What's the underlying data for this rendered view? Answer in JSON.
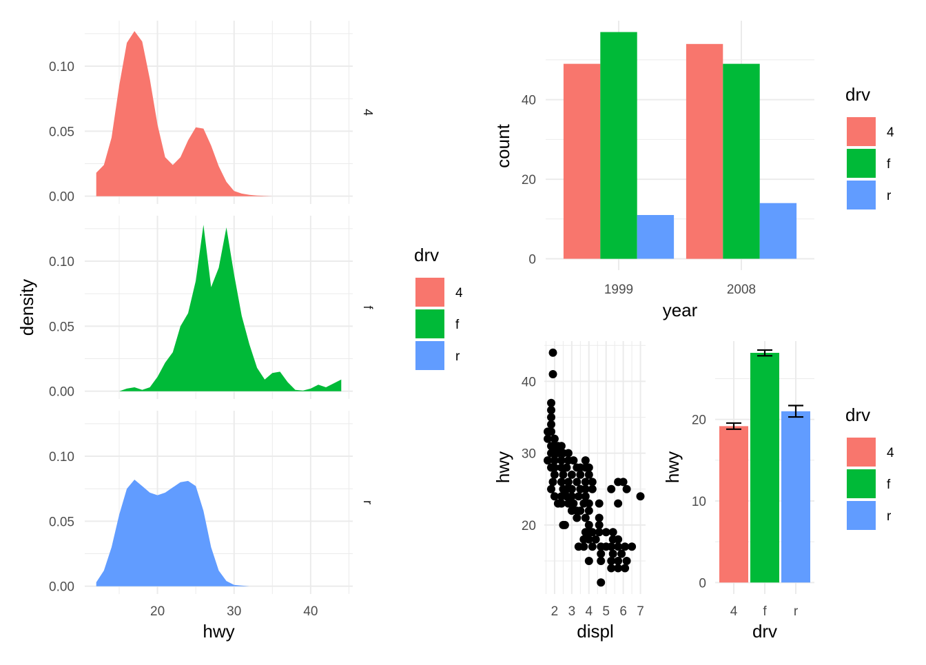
{
  "colors": {
    "4": "#F8766D",
    "f": "#00BA38",
    "r": "#619CFF"
  },
  "chart_data": [
    {
      "type": "area",
      "name": "density-facets",
      "xlabel": "hwy",
      "ylabel": "density",
      "xlim": [
        10.5,
        45.5
      ],
      "ylim": [
        -0.006,
        0.135
      ],
      "xticks": [
        20,
        30,
        40
      ],
      "xtick_labels": [
        "20",
        "30",
        "40"
      ],
      "yticks": [
        0,
        0.05,
        0.1
      ],
      "ytick_labels": [
        "0.00",
        "0.05",
        "0.10"
      ],
      "grid": true,
      "facets": [
        {
          "strip": "4",
          "key": "4",
          "x": [
            12,
            13,
            14,
            15,
            16,
            17,
            18,
            19,
            20,
            21,
            22,
            23,
            24,
            25,
            26,
            27,
            28,
            29,
            30,
            31,
            32,
            33,
            34,
            35
          ],
          "y": [
            0.018,
            0.024,
            0.045,
            0.085,
            0.118,
            0.127,
            0.119,
            0.09,
            0.055,
            0.03,
            0.024,
            0.03,
            0.043,
            0.053,
            0.052,
            0.039,
            0.023,
            0.011,
            0.004,
            0.002,
            0.001,
            0.0005,
            0.0002,
            0
          ]
        },
        {
          "strip": "f",
          "key": "f",
          "x": [
            15,
            16,
            17,
            18,
            19,
            20,
            21,
            22,
            23,
            24,
            25,
            26,
            27,
            28,
            29,
            30,
            31,
            32,
            33,
            34,
            35,
            36,
            37,
            38,
            39,
            40,
            41,
            42,
            43,
            44
          ],
          "y": [
            0,
            0.002,
            0.003,
            0.001,
            0.003,
            0.011,
            0.022,
            0.03,
            0.05,
            0.06,
            0.085,
            0.128,
            0.08,
            0.095,
            0.126,
            0.09,
            0.058,
            0.036,
            0.018,
            0.009,
            0.014,
            0.015,
            0.007,
            0.001,
            0.0005,
            0.002,
            0.005,
            0.003,
            0.006,
            0.009
          ]
        },
        {
          "strip": "r",
          "key": "r",
          "x": [
            12,
            13,
            14,
            15,
            16,
            17,
            18,
            19,
            20,
            21,
            22,
            23,
            24,
            25,
            26,
            27,
            28,
            29,
            30,
            31,
            32
          ],
          "y": [
            0.003,
            0.012,
            0.03,
            0.055,
            0.075,
            0.082,
            0.077,
            0.072,
            0.07,
            0.072,
            0.076,
            0.08,
            0.081,
            0.077,
            0.058,
            0.03,
            0.012,
            0.004,
            0.001,
            0.0005,
            0
          ]
        }
      ]
    },
    {
      "type": "bar",
      "name": "count-by-year",
      "categories": [
        "1999",
        "2008"
      ],
      "series": [
        {
          "name": "4",
          "values": [
            49,
            54
          ]
        },
        {
          "name": "f",
          "values": [
            57,
            49
          ]
        },
        {
          "name": "r",
          "values": [
            11,
            14
          ]
        }
      ],
      "xlabel": "year",
      "ylabel": "count",
      "ylim": [
        -2.85,
        59.85
      ],
      "yticks": [
        0,
        20,
        40
      ],
      "ytick_labels": [
        "0",
        "20",
        "40"
      ],
      "grid": true,
      "legend": "right"
    },
    {
      "type": "scatter",
      "name": "hwy-vs-displ",
      "xlabel": "displ",
      "ylabel": "hwy",
      "xlim": [
        1.4,
        7.3
      ],
      "ylim": [
        10.4,
        45.6
      ],
      "xticks": [
        2,
        3,
        4,
        5,
        6,
        7
      ],
      "xtick_labels": [
        "2",
        "3",
        "4",
        "5",
        "6",
        "7"
      ],
      "yticks": [
        20,
        30,
        40
      ],
      "ytick_labels": [
        "20",
        "30",
        "40"
      ],
      "grid": true,
      "points": [
        [
          1.9,
          44
        ],
        [
          1.9,
          41
        ],
        [
          1.8,
          37
        ],
        [
          1.8,
          36
        ],
        [
          1.8,
          35
        ],
        [
          1.8,
          34
        ],
        [
          1.6,
          33
        ],
        [
          1.8,
          33
        ],
        [
          1.6,
          32
        ],
        [
          2.0,
          32
        ],
        [
          1.8,
          31
        ],
        [
          2.0,
          31
        ],
        [
          2.2,
          31
        ],
        [
          2.4,
          31
        ],
        [
          2.0,
          30
        ],
        [
          1.8,
          30
        ],
        [
          2.2,
          30
        ],
        [
          2.5,
          30
        ],
        [
          2.8,
          30
        ],
        [
          1.6,
          29
        ],
        [
          2.0,
          29
        ],
        [
          2.4,
          29
        ],
        [
          2.8,
          29
        ],
        [
          3.1,
          29
        ],
        [
          3.8,
          29
        ],
        [
          1.8,
          28
        ],
        [
          2.0,
          28
        ],
        [
          2.4,
          28
        ],
        [
          2.7,
          28
        ],
        [
          3.3,
          28
        ],
        [
          3.5,
          28
        ],
        [
          3.8,
          28
        ],
        [
          4.0,
          28
        ],
        [
          2.0,
          27
        ],
        [
          2.5,
          27
        ],
        [
          3.0,
          27
        ],
        [
          3.5,
          27
        ],
        [
          4.0,
          27
        ],
        [
          1.9,
          26
        ],
        [
          2.4,
          26
        ],
        [
          2.8,
          26
        ],
        [
          3.3,
          26
        ],
        [
          3.8,
          26
        ],
        [
          4.2,
          26
        ],
        [
          5.7,
          26
        ],
        [
          6.0,
          26
        ],
        [
          1.8,
          25
        ],
        [
          2.5,
          25
        ],
        [
          2.7,
          25
        ],
        [
          3.0,
          25
        ],
        [
          3.5,
          25
        ],
        [
          3.8,
          25
        ],
        [
          4.2,
          25
        ],
        [
          5.3,
          25
        ],
        [
          6.2,
          25
        ],
        [
          2.0,
          24
        ],
        [
          2.4,
          24
        ],
        [
          2.7,
          24
        ],
        [
          3.0,
          24
        ],
        [
          3.4,
          24
        ],
        [
          3.8,
          24
        ],
        [
          7.0,
          24
        ],
        [
          2.2,
          23
        ],
        [
          2.4,
          23
        ],
        [
          2.8,
          23
        ],
        [
          3.1,
          23
        ],
        [
          3.7,
          23
        ],
        [
          4.0,
          23
        ],
        [
          4.6,
          23
        ],
        [
          5.7,
          23
        ],
        [
          3.0,
          22
        ],
        [
          3.3,
          22
        ],
        [
          3.5,
          22
        ],
        [
          4.0,
          22
        ],
        [
          3.3,
          21
        ],
        [
          3.8,
          21
        ],
        [
          4.6,
          21
        ],
        [
          2.5,
          20
        ],
        [
          2.6,
          20
        ],
        [
          4.0,
          20
        ],
        [
          4.6,
          20
        ],
        [
          3.8,
          19
        ],
        [
          4.0,
          19
        ],
        [
          4.2,
          19
        ],
        [
          4.6,
          19
        ],
        [
          5.0,
          19
        ],
        [
          5.4,
          19
        ],
        [
          3.7,
          18
        ],
        [
          4.0,
          18
        ],
        [
          4.4,
          18
        ],
        [
          5.4,
          18
        ],
        [
          5.7,
          18
        ],
        [
          3.4,
          17
        ],
        [
          3.7,
          17
        ],
        [
          4.2,
          17
        ],
        [
          4.7,
          17
        ],
        [
          5.0,
          17
        ],
        [
          5.3,
          17
        ],
        [
          5.7,
          17
        ],
        [
          6.1,
          17
        ],
        [
          6.5,
          17
        ],
        [
          4.7,
          16
        ],
        [
          5.4,
          16
        ],
        [
          5.9,
          16
        ],
        [
          4.0,
          15
        ],
        [
          4.7,
          15
        ],
        [
          5.3,
          15
        ],
        [
          5.7,
          15
        ],
        [
          6.2,
          15
        ],
        [
          5.3,
          14
        ],
        [
          5.7,
          14
        ],
        [
          6.1,
          14
        ],
        [
          4.7,
          12
        ]
      ]
    },
    {
      "type": "bar",
      "name": "mean-hwy-by-drv",
      "categories": [
        "4",
        "f",
        "r"
      ],
      "values": [
        19.17,
        28.16,
        21.0
      ],
      "error_bars": [
        [
          18.8,
          19.55
        ],
        [
          27.8,
          28.5
        ],
        [
          20.3,
          21.7
        ]
      ],
      "xlabel": "drv",
      "ylabel": "hwy",
      "ylim": [
        -1.41,
        29.6
      ],
      "yticks": [
        0,
        10,
        20
      ],
      "ytick_labels": [
        "0",
        "10",
        "20"
      ],
      "grid": true,
      "legend": "right"
    }
  ],
  "legends": [
    {
      "title": "drv",
      "labels": [
        "4",
        "f",
        "r"
      ],
      "keys": [
        "4",
        "f",
        "r"
      ]
    },
    {
      "title": "drv",
      "labels": [
        "4",
        "f",
        "r"
      ],
      "keys": [
        "4",
        "f",
        "r"
      ]
    },
    {
      "title": "drv",
      "labels": [
        "4",
        "f",
        "r"
      ],
      "keys": [
        "4",
        "f",
        "r"
      ]
    }
  ]
}
